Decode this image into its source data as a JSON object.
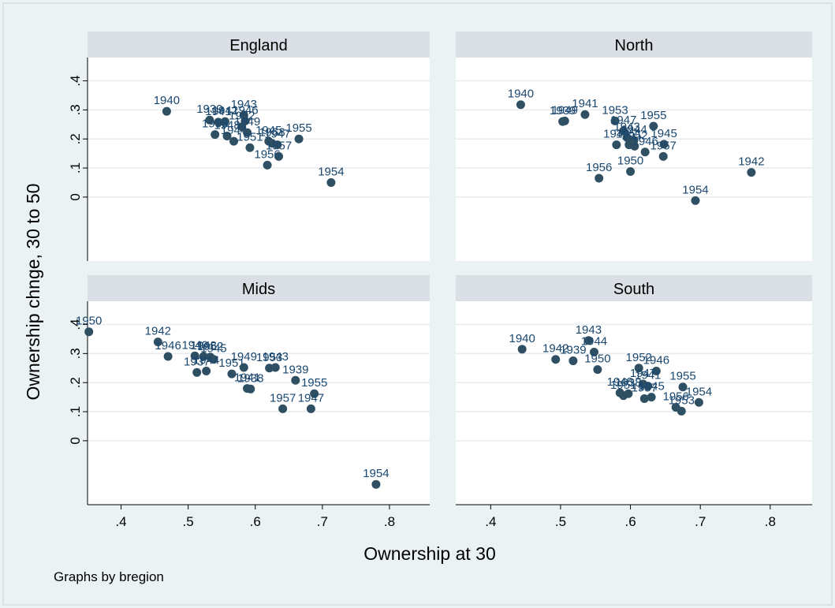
{
  "chart_data": {
    "type": "scatter",
    "xlabel": "Ownership at 30",
    "ylabel": "Ownership chnge, 30 to 50",
    "note": "Graphs by bregion",
    "xlim": [
      0.35,
      0.86
    ],
    "ylim": [
      -0.22,
      0.48
    ],
    "xticks": [
      ".4",
      ".5",
      ".6",
      ".7",
      ".8"
    ],
    "yticks": [
      "0",
      ".1",
      ".2",
      ".3",
      ".4"
    ],
    "point_color": "#2f4f63",
    "label_color": "#1a476f",
    "strip_color": "#d9dfe4",
    "panels": [
      {
        "title": "England",
        "points": [
          {
            "label": "1940",
            "x": 0.468,
            "y": 0.295
          },
          {
            "label": "1939",
            "x": 0.532,
            "y": 0.265
          },
          {
            "label": "1941",
            "x": 0.545,
            "y": 0.258
          },
          {
            "label": "1942",
            "x": 0.555,
            "y": 0.26
          },
          {
            "label": "1943",
            "x": 0.583,
            "y": 0.282
          },
          {
            "label": "1946",
            "x": 0.585,
            "y": 0.262
          },
          {
            "label": "1952",
            "x": 0.58,
            "y": 0.242
          },
          {
            "label": "1938",
            "x": 0.54,
            "y": 0.215
          },
          {
            "label": "1948",
            "x": 0.558,
            "y": 0.21
          },
          {
            "label": "1944",
            "x": 0.568,
            "y": 0.192
          },
          {
            "label": "1949",
            "x": 0.588,
            "y": 0.222
          },
          {
            "label": "1951",
            "x": 0.592,
            "y": 0.17
          },
          {
            "label": "1945",
            "x": 0.62,
            "y": 0.192
          },
          {
            "label": "1953",
            "x": 0.625,
            "y": 0.185
          },
          {
            "label": "1947",
            "x": 0.633,
            "y": 0.18
          },
          {
            "label": "1955",
            "x": 0.665,
            "y": 0.2
          },
          {
            "label": "1957",
            "x": 0.635,
            "y": 0.14
          },
          {
            "label": "1956",
            "x": 0.618,
            "y": 0.11
          },
          {
            "label": "1954",
            "x": 0.713,
            "y": 0.05
          }
        ]
      },
      {
        "title": "North",
        "points": [
          {
            "label": "1940",
            "x": 0.443,
            "y": 0.318
          },
          {
            "label": "1939",
            "x": 0.503,
            "y": 0.26
          },
          {
            "label": "1949",
            "x": 0.506,
            "y": 0.262
          },
          {
            "label": "1941",
            "x": 0.535,
            "y": 0.284
          },
          {
            "label": "1953",
            "x": 0.578,
            "y": 0.262
          },
          {
            "label": "1947",
            "x": 0.59,
            "y": 0.228
          },
          {
            "label": "1955",
            "x": 0.633,
            "y": 0.244
          },
          {
            "label": "1948",
            "x": 0.58,
            "y": 0.18
          },
          {
            "label": "1943",
            "x": 0.595,
            "y": 0.205
          },
          {
            "label": "1944",
            "x": 0.605,
            "y": 0.195
          },
          {
            "label": "1951",
            "x": 0.598,
            "y": 0.18
          },
          {
            "label": "1952",
            "x": 0.606,
            "y": 0.175
          },
          {
            "label": "1945",
            "x": 0.648,
            "y": 0.182
          },
          {
            "label": "1957",
            "x": 0.647,
            "y": 0.14
          },
          {
            "label": "1946",
            "x": 0.621,
            "y": 0.155
          },
          {
            "label": "1950",
            "x": 0.6,
            "y": 0.088
          },
          {
            "label": "1956",
            "x": 0.555,
            "y": 0.065
          },
          {
            "label": "1942",
            "x": 0.773,
            "y": 0.085
          },
          {
            "label": "1954",
            "x": 0.693,
            "y": -0.012
          }
        ]
      },
      {
        "title": "Mids",
        "points": [
          {
            "label": "1950",
            "x": 0.352,
            "y": 0.375
          },
          {
            "label": "1942",
            "x": 0.455,
            "y": 0.34
          },
          {
            "label": "1946",
            "x": 0.47,
            "y": 0.29
          },
          {
            "label": "1940",
            "x": 0.51,
            "y": 0.292
          },
          {
            "label": "1948",
            "x": 0.523,
            "y": 0.29
          },
          {
            "label": "1952",
            "x": 0.533,
            "y": 0.288
          },
          {
            "label": "1945",
            "x": 0.538,
            "y": 0.28
          },
          {
            "label": "1937",
            "x": 0.513,
            "y": 0.235
          },
          {
            "label": "1944",
            "x": 0.527,
            "y": 0.24
          },
          {
            "label": "1951",
            "x": 0.565,
            "y": 0.23
          },
          {
            "label": "1949",
            "x": 0.583,
            "y": 0.252
          },
          {
            "label": "1953",
            "x": 0.621,
            "y": 0.25
          },
          {
            "label": "1943",
            "x": 0.63,
            "y": 0.252
          },
          {
            "label": "1939",
            "x": 0.66,
            "y": 0.208
          },
          {
            "label": "1941",
            "x": 0.588,
            "y": 0.18
          },
          {
            "label": "1938",
            "x": 0.593,
            "y": 0.178
          },
          {
            "label": "1955",
            "x": 0.688,
            "y": 0.162
          },
          {
            "label": "1957",
            "x": 0.641,
            "y": 0.11
          },
          {
            "label": "1947",
            "x": 0.683,
            "y": 0.11
          },
          {
            "label": "1954",
            "x": 0.78,
            "y": -0.15
          }
        ]
      },
      {
        "title": "South",
        "points": [
          {
            "label": "1940",
            "x": 0.445,
            "y": 0.315
          },
          {
            "label": "1942",
            "x": 0.493,
            "y": 0.28
          },
          {
            "label": "1939",
            "x": 0.518,
            "y": 0.275
          },
          {
            "label": "1943",
            "x": 0.54,
            "y": 0.345
          },
          {
            "label": "1944",
            "x": 0.548,
            "y": 0.305
          },
          {
            "label": "1950",
            "x": 0.553,
            "y": 0.245
          },
          {
            "label": "1952",
            "x": 0.612,
            "y": 0.25
          },
          {
            "label": "1946",
            "x": 0.637,
            "y": 0.24
          },
          {
            "label": "1947",
            "x": 0.618,
            "y": 0.195
          },
          {
            "label": "1941",
            "x": 0.625,
            "y": 0.188
          },
          {
            "label": "1948",
            "x": 0.585,
            "y": 0.165
          },
          {
            "label": "1951",
            "x": 0.59,
            "y": 0.155
          },
          {
            "label": "1938",
            "x": 0.597,
            "y": 0.162
          },
          {
            "label": "1945",
            "x": 0.63,
            "y": 0.15
          },
          {
            "label": "1957",
            "x": 0.62,
            "y": 0.145
          },
          {
            "label": "1955",
            "x": 0.675,
            "y": 0.185
          },
          {
            "label": "1954",
            "x": 0.698,
            "y": 0.132
          },
          {
            "label": "1956",
            "x": 0.665,
            "y": 0.115
          },
          {
            "label": "1953",
            "x": 0.673,
            "y": 0.102
          }
        ]
      }
    ]
  }
}
